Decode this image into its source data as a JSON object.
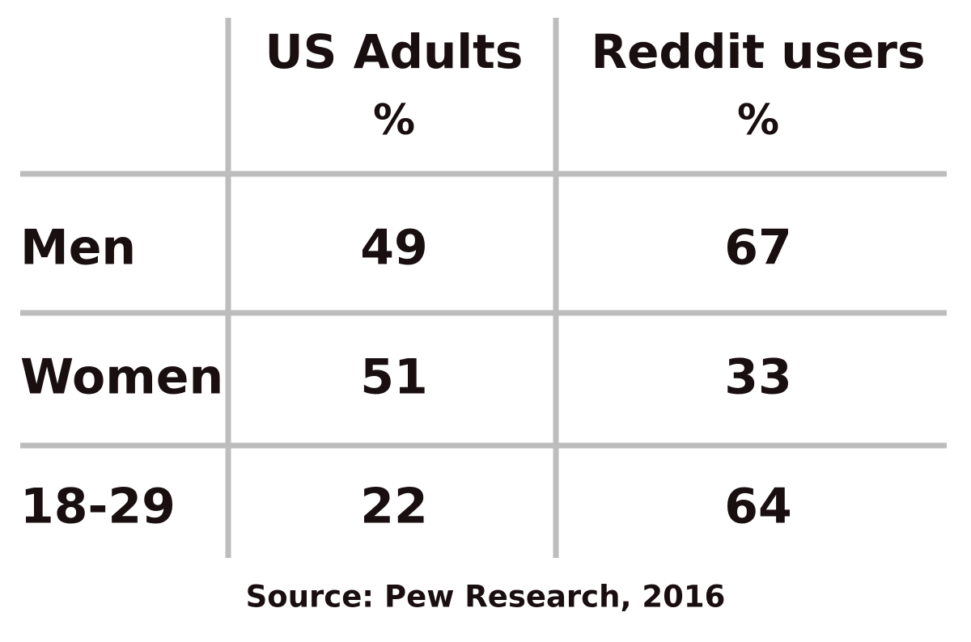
{
  "table": {
    "columns": [
      {
        "title": "US Adults",
        "unit": "%"
      },
      {
        "title": "Reddit users",
        "unit": "%"
      }
    ],
    "rows": [
      {
        "label": "Men",
        "values": [
          49,
          67
        ]
      },
      {
        "label": "Women",
        "values": [
          51,
          33
        ]
      },
      {
        "label": "18-29",
        "values": [
          22,
          64
        ]
      }
    ]
  },
  "source": "Source: Pew Research, 2016"
}
